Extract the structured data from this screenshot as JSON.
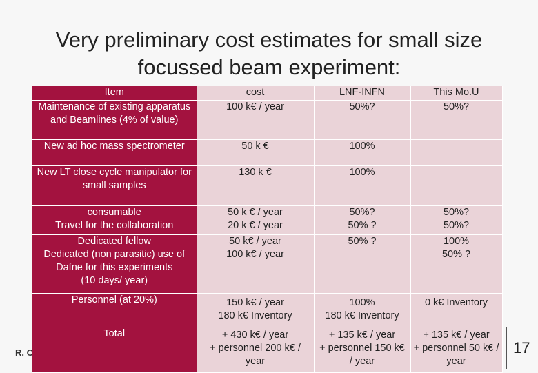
{
  "title": "Very preliminary cost estimates for small size focussed beam experiment:",
  "table": {
    "header": [
      "Item",
      "cost",
      "LNF-INFN",
      "This Mo.U"
    ],
    "rows": [
      [
        "Maintenance of existing apparatus and Beamlines (4% of value)",
        "100 k€ / year",
        "50%?",
        "50%?"
      ],
      [
        "New ad hoc mass spectrometer",
        "50 k €",
        "100%",
        null
      ],
      [
        "New LT close cycle manipulator for small samples",
        "130 k €",
        "100%",
        null
      ],
      [
        "consumable\nTravel for the collaboration",
        "50 k € / year\n20 k € / year",
        "50%?\n50% ?",
        "50%?\n50%?"
      ],
      [
        "Dedicated fellow\nDedicated (non parasitic)  use of Dafne for this experiments\n(10 days/ year)",
        "50 k€ / year\n100 k€ / year",
        "50% ?",
        "100%\n50% ?"
      ],
      [
        "Personnel (at 20%)",
        "150 k€ / year\n180 k€ Inventory",
        "100%\n180 k€ Inventory",
        "0 k€ Inventory"
      ],
      [
        "Total",
        "+ 430 k€ / year\n+ personnel 200 k€ / year",
        "+ 135 k€ / year\n+ personnel 150 k€ / year",
        "+ 135 k€ / year\n+ personnel 50 k€ / year"
      ]
    ]
  },
  "footer": {
    "author": "R. C",
    "page": "17"
  }
}
